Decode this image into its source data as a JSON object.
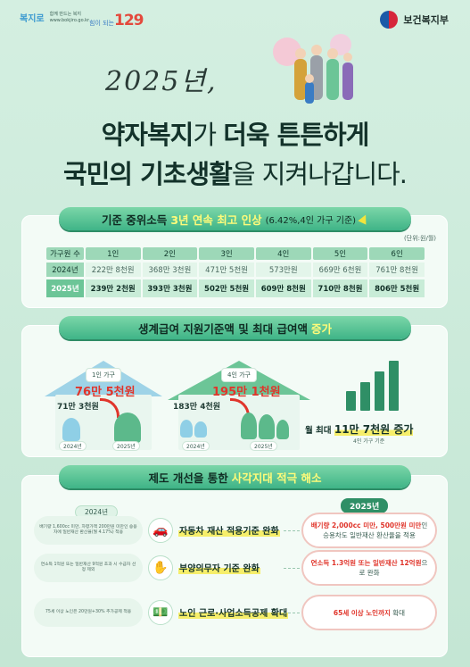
{
  "header": {
    "logo_text": "복지로",
    "logo_tagline_1": "함께 만드는 복지",
    "logo_tagline_2": "www.bokjiro.go.kr",
    "logo_129_prefix": "힘이 되는",
    "logo_129": "129",
    "ministry": "보건복지부"
  },
  "hero": {
    "script_title": "2025년,",
    "line1": [
      {
        "text": "약자복지",
        "weight": "bold"
      },
      {
        "text": "가 ",
        "weight": "light"
      },
      {
        "text": "더욱 튼튼하게",
        "weight": "bold"
      }
    ],
    "line2": [
      {
        "text": "국민의 기초생활",
        "weight": "bold"
      },
      {
        "text": "을 지켜나갑니다.",
        "weight": "light"
      }
    ]
  },
  "section1": {
    "title_a": "기준 중위소득",
    "title_b": "3년 연속 최고 인상",
    "title_c": "(6.42%,4인 가구 기준)",
    "unit": "(단위:원/월)",
    "header_label": "가구원 수",
    "columns": [
      "1인",
      "2인",
      "3인",
      "4인",
      "5인",
      "6인"
    ],
    "rows": [
      {
        "year": "2024년",
        "values": [
          "222만 8천원",
          "368만 3천원",
          "471만 5천원",
          "573만원",
          "669만 6천원",
          "761만 8천원"
        ]
      },
      {
        "year": "2025년",
        "values": [
          "239만 2천원",
          "393만 3천원",
          "502만 5천원",
          "609만 8천원",
          "710만 8천원",
          "806만 5천원"
        ]
      }
    ]
  },
  "section2": {
    "title_a": "생계급여 지원기준액 및 최대 급여액",
    "title_b": "증가",
    "single": {
      "label": "1인 가구",
      "new": "76만 5천원",
      "old": "71만 3천원",
      "y_old": "2024년",
      "y_new": "2025년"
    },
    "four": {
      "label": "4인 가구",
      "new": "195만 1천원",
      "old": "183만 4천원",
      "y_old": "2024년",
      "y_new": "2025년"
    },
    "max_prefix": "월 최대",
    "max_value": "11만 7천원 증가",
    "max_note": "4인 가구 기준"
  },
  "section3": {
    "title_a": "제도 개선을 통한",
    "title_b": "사각지대 적극 해소",
    "tag_old": "2024년",
    "tag_new": "2025년",
    "items": [
      {
        "old": "배기량 1,600cc 미만, 차령가액 200만원 미만인 승용차에 일반재산 환산율(월 4.17%) 적용",
        "title": "자동차 재산 적용기준 완화",
        "new_red": "배기량 2,000cc 미만, 500만원 미만",
        "new_rest": "인 승용차도 일반재산 환산율을 적용",
        "icon": "car-icon"
      },
      {
        "old": "연소득 1억원 또는 일반재산 9억원 초과 시 수급자 선정 제외",
        "title": "부양의무자 기준 완화",
        "new_red": "연소득 1.3억원 또는 일반재산 12억원",
        "new_rest": "으로 완화",
        "icon": "hand-coin-icon"
      },
      {
        "old": "75세 이상 노인은 20만원+30% 추가공제 적용",
        "title": "노인 근로·사업소득공제 확대",
        "new_red": "65세 이상 노인까지",
        "new_rest": " 확대",
        "icon": "money-icon"
      }
    ]
  },
  "colors": {
    "accent": "#3fb487",
    "highlight": "#f6ee6a",
    "red": "#e0352b",
    "background": "#c9ead9"
  }
}
